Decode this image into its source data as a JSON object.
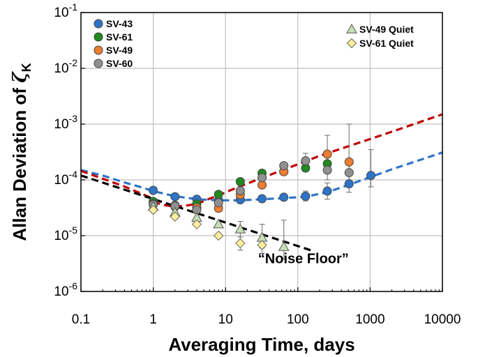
{
  "chart_data": {
    "type": "scatter",
    "xlabel": "Averaging Time, days",
    "ylabel_prefix": "Allan Deviation of ",
    "ylabel_symbol": "ζ",
    "ylabel_subscript": "K",
    "x_scale": "log",
    "y_scale": "log",
    "xlim": [
      0.1,
      10000
    ],
    "ylim": [
      1e-06,
      0.1
    ],
    "grid": true,
    "x_ticks": [
      0.1,
      1,
      10,
      100,
      1000,
      10000
    ],
    "x_tick_labels": [
      "0.1",
      "1",
      "10",
      "100",
      "1000",
      "10000"
    ],
    "y_ticks": [
      1e-06,
      1e-05,
      0.0001,
      0.001,
      0.01,
      0.1
    ],
    "y_tick_labels": [
      {
        "base": "10",
        "exp": "-6"
      },
      {
        "base": "10",
        "exp": "-5"
      },
      {
        "base": "10",
        "exp": "-4"
      },
      {
        "base": "10",
        "exp": "-3"
      },
      {
        "base": "10",
        "exp": "-2"
      },
      {
        "base": "10",
        "exp": "-1"
      }
    ],
    "legend_left_position": "top-left",
    "legend_right_position": "top-right",
    "series": [
      {
        "name": "SV-43",
        "marker": "circle",
        "color": "#2e75c8",
        "legend": "left",
        "x": [
          1,
          2,
          4,
          8,
          16,
          32,
          64,
          128,
          256,
          512,
          1024
        ],
        "y": [
          6.5e-05,
          5e-05,
          4.5e-05,
          4.3e-05,
          4.4e-05,
          4.6e-05,
          4.9e-05,
          5.1e-05,
          6.3e-05,
          8.5e-05,
          0.00012
        ],
        "err": [
          null,
          null,
          null,
          null,
          null,
          null,
          null,
          [
            4.2e-05,
            6.3e-05
          ],
          [
            4.5e-05,
            8.8e-05
          ],
          [
            6e-05,
            0.00013
          ],
          [
            7.5e-05,
            0.00035
          ]
        ]
      },
      {
        "name": "SV-61",
        "marker": "circle",
        "color": "#1f8a1f",
        "legend": "left",
        "x": [
          1,
          2,
          4,
          8,
          16,
          32,
          64,
          128,
          256
        ],
        "y": [
          4.1e-05,
          3.5e-05,
          3.7e-05,
          5.5e-05,
          9.3e-05,
          0.000132,
          0.000142,
          0.000163,
          0.000195
        ],
        "err": [
          null,
          null,
          null,
          null,
          null,
          null,
          null,
          null,
          null
        ]
      },
      {
        "name": "SV-49",
        "marker": "circle",
        "color": "#ed7d31",
        "legend": "left",
        "x": [
          1,
          2,
          4,
          8,
          16,
          32,
          64,
          256,
          512
        ],
        "y": [
          3.7e-05,
          3.3e-05,
          3.2e-05,
          3.1e-05,
          5.4e-05,
          8.1e-05,
          0.00014,
          0.00029,
          0.00021
        ],
        "err": [
          null,
          null,
          null,
          null,
          null,
          null,
          null,
          [
            0.00017,
            0.00063
          ],
          [
            0.00012,
            0.001
          ]
        ]
      },
      {
        "name": "SV-60",
        "marker": "circle",
        "color": "#909090",
        "legend": "left",
        "x": [
          1,
          2,
          4,
          8,
          16,
          32,
          64,
          128,
          256,
          512
        ],
        "y": [
          3.6e-05,
          3.4e-05,
          2.9e-05,
          3.9e-05,
          6.4e-05,
          0.00011,
          0.00018,
          0.00022,
          0.00015,
          0.000135
        ],
        "err": [
          null,
          null,
          null,
          null,
          null,
          null,
          null,
          [
            0.00016,
            0.0003
          ],
          [
            0.0001,
            0.00026
          ],
          [
            9e-05,
            0.00022
          ]
        ]
      },
      {
        "name": "SV-49 Quiet",
        "marker": "triangle",
        "color": "#c6e0b4",
        "legend": "right",
        "x": [
          1,
          2,
          4,
          8,
          16,
          32,
          64
        ],
        "y": [
          3.3e-05,
          2.6e-05,
          2.1e-05,
          1.6e-05,
          1.3e-05,
          9.2e-06,
          6.3e-06
        ],
        "err": [
          null,
          null,
          null,
          null,
          [
            8e-06,
            1.8e-05
          ],
          [
            6e-06,
            1.6e-05
          ],
          [
            3.8e-06,
            1.9e-05
          ]
        ]
      },
      {
        "name": "SV-61 Quiet",
        "marker": "diamond",
        "color": "#ffef99",
        "legend": "right",
        "x": [
          1,
          2,
          4,
          8,
          16,
          32
        ],
        "y": [
          2.9e-05,
          2.2e-05,
          1.6e-05,
          1e-05,
          7.3e-06,
          6.8e-06
        ],
        "err": [
          null,
          null,
          null,
          null,
          [
            5.5e-06,
            9.5e-06
          ],
          [
            4.8e-06,
            1e-05
          ]
        ]
      }
    ],
    "fit_curves": [
      {
        "color": "#c00000",
        "style": "dashed",
        "x": [
          1,
          1.5,
          2,
          3,
          4,
          6,
          8,
          12,
          16,
          24,
          32,
          48,
          64,
          100,
          200,
          500,
          1000,
          2000,
          5000,
          10000
        ],
        "y": [
          4e-05,
          3.5e-05,
          3.3e-05,
          3.5e-05,
          3.7e-05,
          4.6e-05,
          5.3e-05,
          6.6e-05,
          7.7e-05,
          9.4e-05,
          0.000108,
          0.000133,
          0.000153,
          0.00019,
          0.00027,
          0.0004,
          0.00054,
          0.00073,
          0.0011,
          0.0015
        ]
      },
      {
        "color": "#2e75c8",
        "style": "dashed",
        "x": [
          0.1,
          0.2,
          0.4,
          0.7,
          1,
          2,
          4,
          8,
          16,
          32,
          64,
          128,
          256,
          512,
          1000,
          2000,
          5000,
          10000
        ],
        "y": [
          0.00015,
          0.00012,
          9e-05,
          7.3e-05,
          6.3e-05,
          5.1e-05,
          4.5e-05,
          4.3e-05,
          4.3e-05,
          4.5e-05,
          4.7e-05,
          5e-05,
          6e-05,
          8.2e-05,
          0.000112,
          0.000155,
          0.00023,
          0.00031
        ]
      },
      {
        "color": "#c00000",
        "style": "dashed",
        "x": [
          0.1,
          0.2,
          0.4,
          0.7,
          1
        ],
        "y": [
          0.000145,
          0.000105,
          7.6e-05,
          5.6e-05,
          4.6e-05
        ]
      },
      {
        "color": "#000000",
        "style": "dashed",
        "x": [
          0.1,
          150
        ],
        "y": [
          0.00012,
          5.5e-06
        ]
      }
    ],
    "annotations": [
      {
        "text": "“Noise Floor”",
        "x": 100,
        "y": 3.2e-06
      }
    ]
  }
}
